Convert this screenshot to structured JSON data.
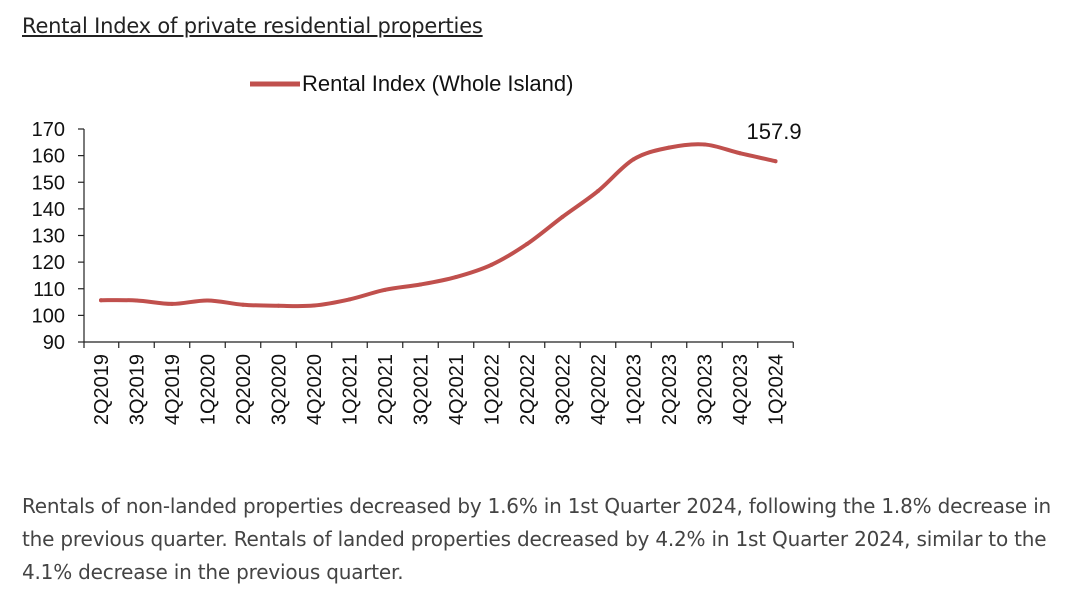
{
  "page": {
    "title": "Rental Index of private residential properties",
    "description": "Rentals of non-landed properties decreased by 1.6% in 1st Quarter 2024, following the 1.8% decrease in the previous quarter. Rentals of landed properties decreased by 4.2% in 1st Quarter 2024, similar to the 4.1% decrease in the previous quarter."
  },
  "colors": {
    "series": "#c0504d",
    "axis": "#222222"
  },
  "chart_data": {
    "type": "line",
    "title": "",
    "xlabel": "",
    "ylabel": "",
    "ylim": [
      90,
      170
    ],
    "yticks": [
      90,
      100,
      110,
      120,
      130,
      140,
      150,
      160,
      170
    ],
    "grid": false,
    "legend_position": "top",
    "categories": [
      "2Q2019",
      "3Q2019",
      "4Q2019",
      "1Q2020",
      "2Q2020",
      "3Q2020",
      "4Q2020",
      "1Q2021",
      "2Q2021",
      "3Q2021",
      "4Q2021",
      "1Q2022",
      "2Q2022",
      "3Q2022",
      "4Q2022",
      "1Q2023",
      "2Q2023",
      "3Q2023",
      "4Q2023",
      "1Q2024"
    ],
    "series": [
      {
        "name": "Rental Index (Whole Island)",
        "values": [
          105.7,
          105.6,
          104.3,
          105.6,
          104.0,
          103.6,
          103.7,
          106.0,
          109.6,
          111.6,
          114.4,
          119.0,
          126.8,
          137.0,
          146.7,
          158.6,
          163.0,
          164.2,
          160.9,
          157.9
        ]
      }
    ],
    "annotations": [
      {
        "category": "1Q2024",
        "text": "157.9"
      }
    ]
  }
}
